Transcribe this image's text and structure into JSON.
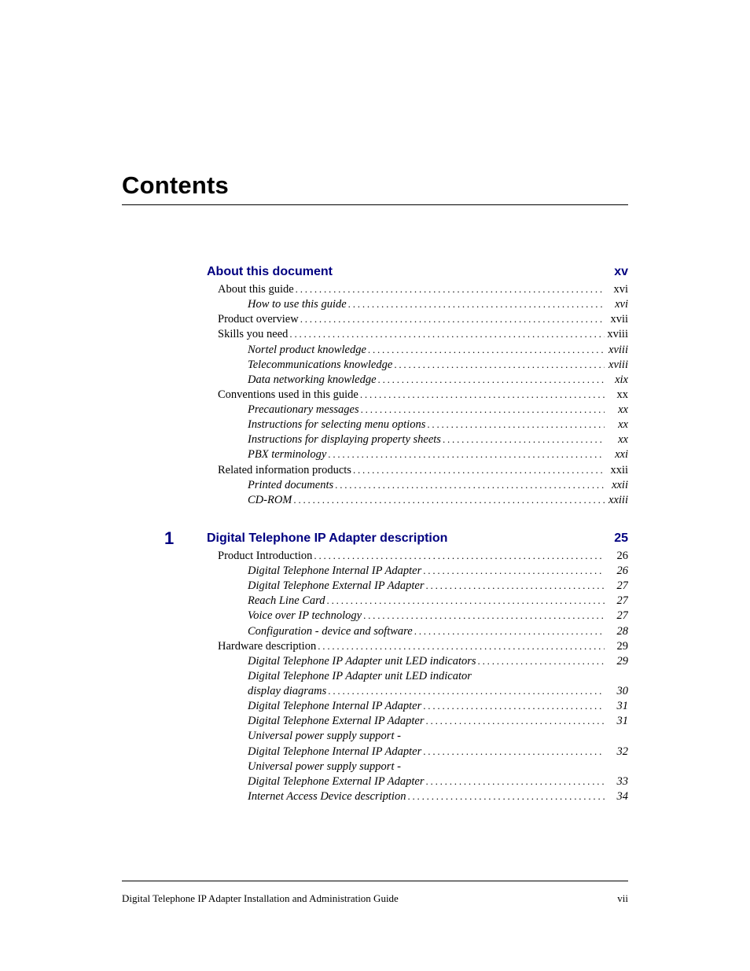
{
  "page_title": "Contents",
  "colors": {
    "accent": "#000080",
    "text": "#000000",
    "bg": "#ffffff"
  },
  "sections": [
    {
      "chapter": "",
      "title": "About this document",
      "page": "xv",
      "entries": [
        {
          "level": 1,
          "label": "About this guide",
          "page": "xvi"
        },
        {
          "level": 2,
          "label": "How to use this guide",
          "page": "xvi"
        },
        {
          "level": 1,
          "label": "Product overview",
          "page": "xvii"
        },
        {
          "level": 1,
          "label": "Skills you need",
          "page": "xviii"
        },
        {
          "level": 2,
          "label": "Nortel product knowledge",
          "page": "xviii"
        },
        {
          "level": 2,
          "label": "Telecommunications knowledge",
          "page": "xviii"
        },
        {
          "level": 2,
          "label": "Data networking knowledge",
          "page": "xix"
        },
        {
          "level": 1,
          "label": "Conventions used in this guide",
          "page": "xx"
        },
        {
          "level": 2,
          "label": "Precautionary messages",
          "page": "xx"
        },
        {
          "level": 2,
          "label": "Instructions for selecting menu options",
          "page": "xx"
        },
        {
          "level": 2,
          "label": "Instructions for displaying property sheets",
          "page": "xx"
        },
        {
          "level": 2,
          "label": "PBX terminology",
          "page": "xxi"
        },
        {
          "level": 1,
          "label": "Related information products",
          "page": "xxii"
        },
        {
          "level": 2,
          "label": "Printed documents",
          "page": "xxii"
        },
        {
          "level": 2,
          "label": "CD-ROM",
          "page": "xxiii"
        }
      ]
    },
    {
      "chapter": "1",
      "title": "Digital Telephone IP Adapter description",
      "page": "25",
      "entries": [
        {
          "level": 1,
          "label": "Product Introduction",
          "page": "26"
        },
        {
          "level": 2,
          "label": "Digital Telephone Internal IP Adapter",
          "page": "26"
        },
        {
          "level": 2,
          "label": "Digital Telephone External IP Adapter",
          "page": "27"
        },
        {
          "level": 2,
          "label": "Reach Line Card",
          "page": "27"
        },
        {
          "level": 2,
          "label": "Voice over IP technology",
          "page": "27"
        },
        {
          "level": 2,
          "label": "Configuration - device and software",
          "page": "28"
        },
        {
          "level": 1,
          "label": "Hardware description",
          "page": "29"
        },
        {
          "level": 2,
          "label": "Digital Telephone IP Adapter unit LED indicators",
          "page": "29"
        },
        {
          "level": 2,
          "label": "Digital Telephone IP Adapter unit LED indicator",
          "nopage": true
        },
        {
          "level": 2,
          "label": "display diagrams",
          "page": "30"
        },
        {
          "level": 2,
          "label": "Digital Telephone Internal IP Adapter",
          "page": "31"
        },
        {
          "level": 2,
          "label": "Digital Telephone External IP Adapter",
          "page": "31"
        },
        {
          "level": 2,
          "label": "Universal power supply support -",
          "nopage": true
        },
        {
          "level": 2,
          "label": "Digital Telephone Internal IP Adapter",
          "page": "32"
        },
        {
          "level": 2,
          "label": "Universal power supply support -",
          "nopage": true
        },
        {
          "level": 2,
          "label": "Digital Telephone External IP Adapter",
          "page": "33"
        },
        {
          "level": 2,
          "label": "Internet Access Device description",
          "page": "34"
        }
      ]
    }
  ],
  "footer": {
    "title": "Digital Telephone IP Adapter Installation and Administration Guide",
    "page": "vii"
  }
}
